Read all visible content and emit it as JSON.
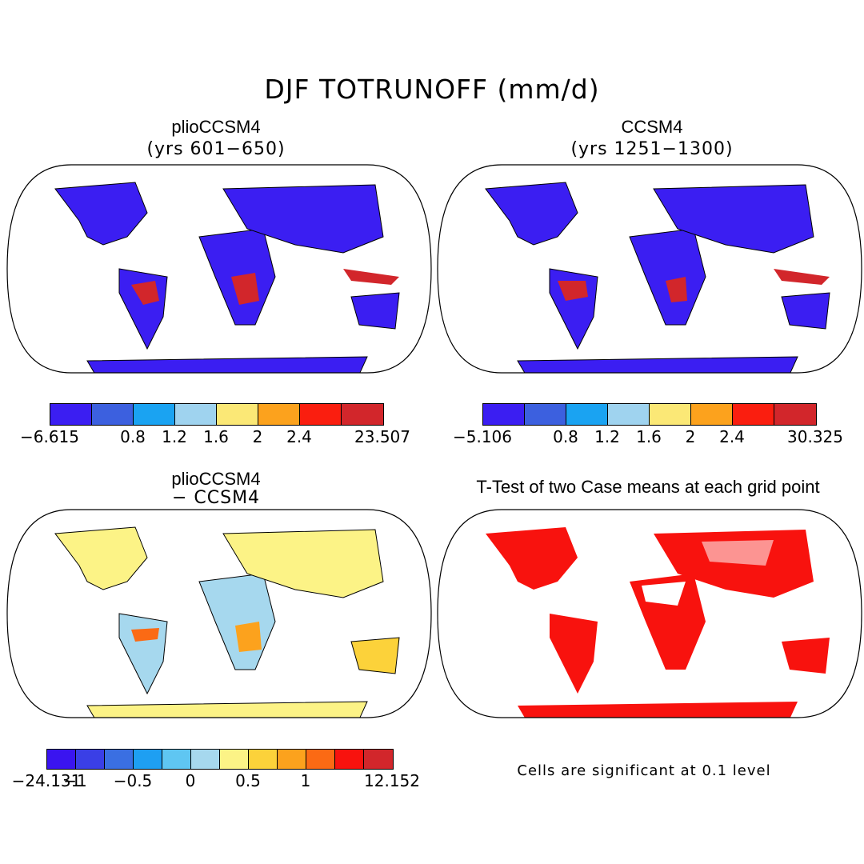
{
  "title": "DJF TOTRUNOFF (mm/d)",
  "panels": [
    {
      "id": "plio",
      "title": "plioCCSM4",
      "subtitle": "(yrs 601−650)",
      "colorbar": {
        "colors": [
          "#3b1ef2",
          "#3c60df",
          "#1aa3f2",
          "#9fd3ef",
          "#fbe876",
          "#fca21d",
          "#fa1e0f",
          "#d2262b"
        ],
        "labels": [
          "−6.615",
          "0.8",
          "1.2",
          "1.6",
          "2",
          "2.4",
          "23.507"
        ]
      }
    },
    {
      "id": "ccsm4",
      "title": "CCSM4",
      "subtitle": "(yrs 1251−1300)",
      "colorbar": {
        "colors": [
          "#3b1ef2",
          "#3c60df",
          "#1aa3f2",
          "#9fd3ef",
          "#fbe876",
          "#fca21d",
          "#fa1e0f",
          "#d2262b"
        ],
        "labels": [
          "−5.106",
          "0.8",
          "1.2",
          "1.6",
          "2",
          "2.4",
          "30.325"
        ]
      }
    },
    {
      "id": "diff",
      "title": "plioCCSM4",
      "subtitle": "− CCSM4",
      "colorbar": {
        "colors": [
          "#3a14f0",
          "#3a3fe6",
          "#3a6fe2",
          "#1e9ff2",
          "#5fc6f2",
          "#a6d8ee",
          "#fcf386",
          "#fcd23a",
          "#fca21d",
          "#fb6a14",
          "#f8120e",
          "#d2262b"
        ],
        "labels": [
          "−24.131",
          "−1",
          "−0.5",
          "0",
          "0.5",
          "1",
          "12.152"
        ]
      }
    },
    {
      "id": "ttest",
      "title": "T-Test of two Case means at each grid point",
      "note": "Cells are significant at 0.1 level"
    }
  ]
}
